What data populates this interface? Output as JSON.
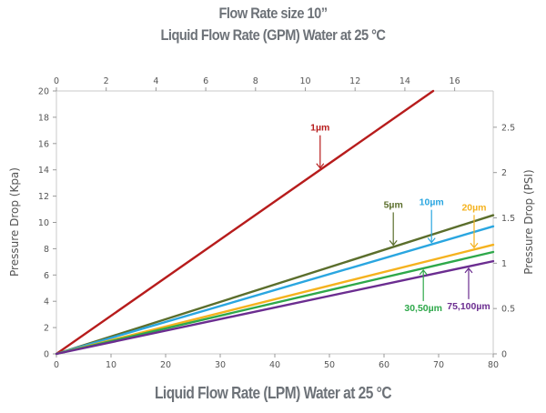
{
  "chart_data": {
    "type": "line",
    "title": "Flow Rate size 10”",
    "subtitle": "Liquid Flow Rate (GPM) Water at 25 °C",
    "xlabel": "Liquid Flow Rate (LPM) Water at 25 °C",
    "ylabel": "Pressure Drop  (Kpa)",
    "y2label": "Pressure Drop  (PSI)",
    "xlim": [
      0,
      80
    ],
    "ylim": [
      0,
      20
    ],
    "x2lim": [
      0,
      17.55
    ],
    "y2lim": [
      0,
      2.9
    ],
    "xticks": [
      0,
      10,
      20,
      30,
      40,
      50,
      60,
      70,
      80
    ],
    "yticks": [
      0,
      2,
      4,
      6,
      8,
      10,
      12,
      14,
      16,
      18,
      20
    ],
    "x2ticks": [
      0,
      2,
      4,
      6,
      8,
      10,
      12,
      14,
      16
    ],
    "y2ticks": [
      0,
      0.5,
      1,
      1.5,
      2,
      2.5
    ],
    "grid": false,
    "series": [
      {
        "name": "1µm",
        "color": "#b71c1c",
        "x": [
          0,
          69
        ],
        "y": [
          0,
          20
        ]
      },
      {
        "name": "5µm",
        "color": "#5b6e2c",
        "x": [
          0,
          80
        ],
        "y": [
          0,
          10.55
        ]
      },
      {
        "name": "10µm",
        "color": "#2aa6e0",
        "x": [
          0,
          80
        ],
        "y": [
          0,
          9.7
        ]
      },
      {
        "name": "20µm",
        "color": "#f5b21e",
        "x": [
          0,
          80
        ],
        "y": [
          0,
          8.3
        ]
      },
      {
        "name": "30,50µm",
        "color": "#2ea84a",
        "x": [
          0,
          80
        ],
        "y": [
          0,
          7.75
        ]
      },
      {
        "name": "75,100µm",
        "color": "#6b2d90",
        "x": [
          0,
          80
        ],
        "y": [
          0,
          7.05
        ]
      }
    ],
    "annotations": [
      {
        "series": 0,
        "text": "1µm",
        "at_x": 48.3,
        "label_position": "above"
      },
      {
        "series": 1,
        "text": "5µm",
        "at_x": 61.7,
        "label_position": "above"
      },
      {
        "series": 2,
        "text": "10µm",
        "at_x": 68.7,
        "label_position": "above"
      },
      {
        "series": 3,
        "text": "20µm",
        "at_x": 76.5,
        "label_position": "above"
      },
      {
        "series": 4,
        "text": "30,50µm",
        "at_x": 67.2,
        "label_position": "below"
      },
      {
        "series": 5,
        "text": "75,100µm",
        "at_x": 75.5,
        "label_position": "below"
      }
    ]
  }
}
